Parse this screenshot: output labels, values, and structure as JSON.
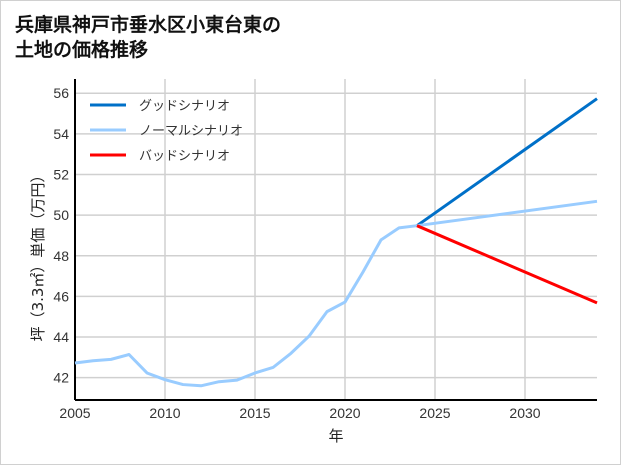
{
  "title_line1": "兵庫県神戸市垂水区小東台東の",
  "title_line2": "土地の価格推移",
  "chart_data": {
    "type": "line",
    "title": "兵庫県神戸市垂水区小東台東の土地の価格推移",
    "xlabel": "年",
    "ylabel": "坪（3.3㎡）単価（万円）",
    "xlim": [
      2005,
      2034
    ],
    "ylim": [
      40.9,
      56.7
    ],
    "xticks": [
      2005,
      2010,
      2015,
      2020,
      2025,
      2030
    ],
    "yticks": [
      42,
      44,
      46,
      48,
      50,
      52,
      54,
      56
    ],
    "grid": true,
    "legend_position": "top-left",
    "series": [
      {
        "name": "グッドシナリオ",
        "color": "#0070c8",
        "x": [
          2024,
          2034
        ],
        "y": [
          49.48,
          55.73
        ]
      },
      {
        "name": "ノーマルシナリオ",
        "color": "#99ccff",
        "x": [
          2005,
          2006,
          2007,
          2008,
          2009,
          2010,
          2011,
          2012,
          2013,
          2014,
          2015,
          2016,
          2017,
          2018,
          2019,
          2020,
          2021,
          2022,
          2023,
          2024,
          2034
        ],
        "y": [
          42.72,
          42.83,
          42.9,
          43.14,
          42.23,
          41.9,
          41.66,
          41.6,
          41.8,
          41.88,
          42.23,
          42.5,
          43.2,
          44.04,
          45.25,
          45.72,
          47.2,
          48.78,
          49.37,
          49.48,
          50.68
        ]
      },
      {
        "name": "バッドシナリオ",
        "color": "#ff0000",
        "x": [
          2024,
          2034
        ],
        "y": [
          49.48,
          45.68
        ]
      }
    ]
  }
}
